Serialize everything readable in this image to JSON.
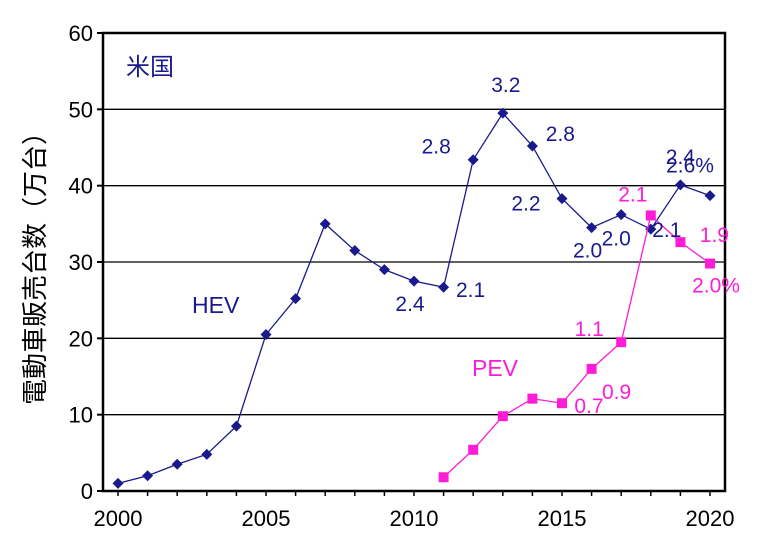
{
  "chart_data": {
    "type": "line",
    "ylabel": "電動車販売台数（万台）",
    "region_label": "米国",
    "ylim": [
      0,
      60
    ],
    "yticks": [
      "0",
      "10",
      "20",
      "30",
      "40",
      "50",
      "60"
    ],
    "xlim": [
      2000,
      2020
    ],
    "xticks": [
      "2000",
      "2005",
      "2010",
      "2015",
      "2020"
    ],
    "grid": "horizontal",
    "series": [
      {
        "name": "HEV",
        "color": "#1a1a8c",
        "marker": "diamond",
        "points": [
          [
            2000,
            1.0
          ],
          [
            2001,
            2.0
          ],
          [
            2002,
            3.5
          ],
          [
            2003,
            4.8
          ],
          [
            2004,
            8.5
          ],
          [
            2005,
            20.5
          ],
          [
            2006,
            25.2
          ],
          [
            2007,
            35.0
          ],
          [
            2008,
            31.5
          ],
          [
            2009,
            29.0
          ],
          [
            2010,
            27.5
          ],
          [
            2011,
            26.7
          ],
          [
            2012,
            43.4
          ],
          [
            2013,
            49.5
          ],
          [
            2014,
            45.2
          ],
          [
            2015,
            38.3
          ],
          [
            2016,
            34.5
          ],
          [
            2017,
            36.2
          ],
          [
            2018,
            34.3
          ],
          [
            2019,
            40.1
          ],
          [
            2020,
            38.7
          ]
        ],
        "share_labels": [
          {
            "text": "2.4",
            "x": 2010,
            "y": 27.5
          },
          {
            "text": "2.1",
            "x": 2011,
            "y": 26.7
          },
          {
            "text": "2.8",
            "x": 2012,
            "y": 43.4
          },
          {
            "text": "3.2",
            "x": 2013,
            "y": 49.5
          },
          {
            "text": "2.8",
            "x": 2014,
            "y": 45.2
          },
          {
            "text": "2.2",
            "x": 2015,
            "y": 38.3
          },
          {
            "text": "2.0",
            "x": 2016,
            "y": 34.5
          },
          {
            "text": "2.0",
            "x": 2017,
            "y": 36.2
          },
          {
            "text": "2.1",
            "x": 2018,
            "y": 34.3
          },
          {
            "text": "2.4",
            "x": 2019,
            "y": 40.1
          },
          {
            "text": "2.6%",
            "x": 2020,
            "y": 38.7
          }
        ]
      },
      {
        "name": "PEV",
        "color": "#ff1cd6",
        "marker": "square",
        "points": [
          [
            2011,
            1.8
          ],
          [
            2012,
            5.4
          ],
          [
            2013,
            9.8
          ],
          [
            2014,
            12.1
          ],
          [
            2015,
            11.5
          ],
          [
            2016,
            16.0
          ],
          [
            2017,
            19.5
          ],
          [
            2018,
            36.1
          ],
          [
            2019,
            32.6
          ],
          [
            2020,
            29.8
          ]
        ],
        "share_labels": [
          {
            "text": "0.7",
            "x": 2015,
            "y": 11.5
          },
          {
            "text": "0.9",
            "x": 2016,
            "y": 16.0
          },
          {
            "text": "1.1",
            "x": 2017,
            "y": 19.5
          },
          {
            "text": "2.1",
            "x": 2018,
            "y": 36.1
          },
          {
            "text": "1.9",
            "x": 2019,
            "y": 32.6
          },
          {
            "text": "2.0%",
            "x": 2020,
            "y": 29.8
          }
        ]
      }
    ]
  }
}
